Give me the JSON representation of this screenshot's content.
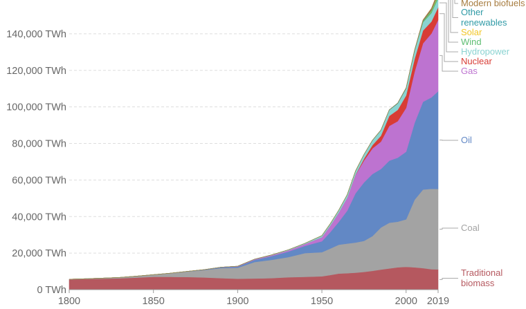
{
  "chart_data": {
    "type": "area",
    "stacked": true,
    "x_tick_labels": [
      "1800",
      "1850",
      "1900",
      "1950",
      "2000",
      "2019"
    ],
    "y_tick_labels": [
      "0 TWh",
      "20,000 TWh",
      "40,000 TWh",
      "60,000 TWh",
      "80,000 TWh",
      "100,000 TWh",
      "120,000 TWh",
      "140,000 TWh"
    ],
    "xlim": [
      1800,
      2019
    ],
    "ylim": [
      0,
      157000
    ],
    "grid": true,
    "legend_placement": "right (labels at end of areas)",
    "x": [
      1800,
      1810,
      1820,
      1830,
      1840,
      1850,
      1860,
      1870,
      1880,
      1890,
      1900,
      1910,
      1920,
      1930,
      1940,
      1950,
      1955,
      1960,
      1965,
      1970,
      1975,
      1980,
      1985,
      1990,
      1995,
      2000,
      2005,
      2010,
      2015,
      2019
    ],
    "series": [
      {
        "name": "Traditional\nbiomass",
        "color": "#b5585f",
        "values": [
          5600,
          5800,
          6000,
          6200,
          6600,
          7000,
          7000,
          6900,
          6700,
          6300,
          6000,
          6100,
          6300,
          6800,
          7000,
          7300,
          8000,
          8800,
          9000,
          9300,
          9700,
          10300,
          11000,
          11600,
          12200,
          12500,
          12200,
          11800,
          11200,
          11100
        ]
      },
      {
        "name": "Coal",
        "color": "#a3a3a3",
        "values": [
          100,
          200,
          300,
          500,
          800,
          1200,
          2000,
          3000,
          4000,
          5500,
          6000,
          9000,
          10000,
          11000,
          13000,
          13200,
          14500,
          15800,
          16200,
          16500,
          17000,
          19000,
          23000,
          25000,
          25000,
          26000,
          37000,
          43000,
          44000,
          44000
        ]
      },
      {
        "name": "Oil",
        "color": "#6288c5",
        "values": [
          0,
          0,
          0,
          0,
          0,
          0,
          0,
          100,
          200,
          400,
          600,
          1200,
          2000,
          3000,
          4000,
          6000,
          9000,
          12500,
          18000,
          27000,
          32000,
          34000,
          32000,
          34000,
          35000,
          37000,
          42000,
          48000,
          50000,
          53500
        ]
      },
      {
        "name": "Gas",
        "color": "#bd73d0",
        "values": [
          0,
          0,
          0,
          0,
          0,
          0,
          0,
          0,
          50,
          100,
          200,
          300,
          500,
          700,
          1000,
          2200,
          3500,
          5000,
          7000,
          10000,
          12000,
          14000,
          15000,
          19000,
          20000,
          24000,
          28000,
          32000,
          35000,
          39000
        ]
      },
      {
        "name": "Nuclear",
        "color": "#d83c35",
        "values": [
          0,
          0,
          0,
          0,
          0,
          0,
          0,
          0,
          0,
          0,
          0,
          0,
          0,
          0,
          0,
          0,
          0,
          0,
          30,
          200,
          1000,
          1800,
          3200,
          5500,
          6200,
          6800,
          7000,
          7000,
          6500,
          6900
        ]
      },
      {
        "name": "Hydropower",
        "color": "#8ad3d1",
        "values": [
          0,
          0,
          0,
          0,
          0,
          0,
          0,
          0,
          0,
          0,
          50,
          100,
          200,
          300,
          400,
          900,
          1100,
          1400,
          1700,
          2000,
          2300,
          2600,
          3000,
          3200,
          3500,
          3800,
          4300,
          4500,
          4700,
          4900
        ]
      },
      {
        "name": "Wind",
        "color": "#5dbd72",
        "values": [
          0,
          0,
          0,
          0,
          0,
          0,
          0,
          0,
          0,
          0,
          0,
          0,
          0,
          0,
          0,
          0,
          0,
          0,
          0,
          0,
          0,
          0,
          0,
          0,
          10,
          80,
          200,
          500,
          1000,
          1450
        ]
      },
      {
        "name": "Solar",
        "color": "#f2c627",
        "values": [
          0,
          0,
          0,
          0,
          0,
          0,
          0,
          0,
          0,
          0,
          0,
          0,
          0,
          0,
          0,
          0,
          0,
          0,
          0,
          0,
          0,
          0,
          0,
          0,
          0,
          5,
          10,
          50,
          300,
          720
        ]
      },
      {
        "name": "Other\nrenewables",
        "color": "#2f9aa6",
        "values": [
          0,
          0,
          0,
          0,
          0,
          0,
          0,
          0,
          0,
          0,
          0,
          0,
          0,
          0,
          0,
          0,
          0,
          0,
          0,
          0,
          0,
          50,
          100,
          150,
          200,
          250,
          300,
          350,
          400,
          500
        ]
      },
      {
        "name": "Modern biofuels",
        "color": "#a77c3f",
        "values": [
          0,
          0,
          0,
          0,
          0,
          0,
          0,
          0,
          0,
          0,
          0,
          0,
          0,
          0,
          0,
          0,
          0,
          0,
          0,
          0,
          0,
          0,
          0,
          0,
          10,
          50,
          100,
          400,
          800,
          1100
        ]
      }
    ],
    "legend_order": [
      "Modern biofuels",
      "Other\nrenewables",
      "Solar",
      "Wind",
      "Hydropower",
      "Nuclear",
      "Gas",
      "Oil",
      "Coal",
      "Traditional\nbiomass"
    ]
  }
}
